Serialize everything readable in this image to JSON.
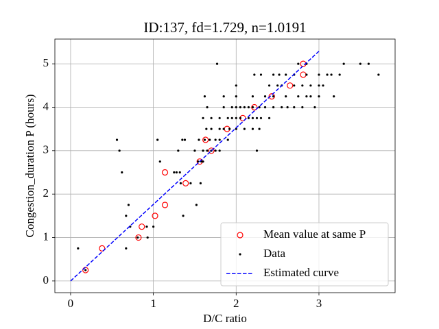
{
  "chart_data": {
    "type": "scatter",
    "title": "ID:137, fd=1.729, n=1.0191",
    "xlabel": "D/C ratio",
    "ylabel": "Congestion_duration P (hours)",
    "xlim": [
      -0.19,
      3.92
    ],
    "ylim": [
      -0.27,
      5.57
    ],
    "xticks": [
      0,
      1,
      2,
      3
    ],
    "yticks": [
      0,
      1,
      2,
      3,
      4,
      5
    ],
    "grid": true,
    "legend": "lower right",
    "series": [
      {
        "name": "Mean value at same P",
        "color": "#ff0000",
        "marker": "open-circle",
        "x": [
          0.18,
          0.38,
          0.82,
          0.86,
          1.02,
          1.14,
          1.14,
          1.39,
          1.56,
          1.63,
          1.7,
          1.89,
          2.08,
          2.22,
          2.43,
          2.65,
          2.81,
          2.81
        ],
        "values": [
          0.25,
          0.75,
          1.0,
          1.25,
          1.5,
          1.75,
          2.5,
          2.25,
          2.75,
          3.25,
          3.0,
          3.5,
          3.75,
          4.0,
          4.25,
          4.5,
          4.75,
          5.0
        ]
      },
      {
        "name": "Data",
        "color": "#000000",
        "marker": "dot",
        "x": [
          0.18,
          0.09,
          0.67,
          0.81,
          0.93,
          0.72,
          0.92,
          1.0,
          0.67,
          1.36,
          0.7,
          1.52,
          1.33,
          1.45,
          1.57,
          0.62,
          1.25,
          1.28,
          1.32,
          1.08,
          1.54,
          1.58,
          1.6,
          0.59,
          1.3,
          1.5,
          1.6,
          1.65,
          1.7,
          1.75,
          1.8,
          2.25,
          0.56,
          1.05,
          1.35,
          1.38,
          1.55,
          1.62,
          1.68,
          1.75,
          1.8,
          1.9,
          1.64,
          1.7,
          1.8,
          1.85,
          1.92,
          2.0,
          2.1,
          2.2,
          2.28,
          1.6,
          1.7,
          1.8,
          1.9,
          1.95,
          2.0,
          2.05,
          2.15,
          2.2,
          2.25,
          2.3,
          2.4,
          1.65,
          1.85,
          1.95,
          2.0,
          2.05,
          2.1,
          2.15,
          2.2,
          2.28,
          2.35,
          2.45,
          2.55,
          2.62,
          2.7,
          2.8,
          2.95,
          1.62,
          1.85,
          2.0,
          2.2,
          2.35,
          2.45,
          2.6,
          2.75,
          2.85,
          2.9,
          3.0,
          3.18,
          2.0,
          2.4,
          2.5,
          2.55,
          2.7,
          2.8,
          2.9,
          3.0,
          3.05,
          2.22,
          2.3,
          2.45,
          2.52,
          2.6,
          2.7,
          2.85,
          3.0,
          3.1,
          3.15,
          3.25,
          3.72,
          1.77,
          2.75,
          2.85,
          3.3,
          3.5,
          3.6
        ],
        "values": [
          0.25,
          0.75,
          0.75,
          1.0,
          1.0,
          1.25,
          1.25,
          1.25,
          1.5,
          1.5,
          1.75,
          1.75,
          2.25,
          2.25,
          2.25,
          2.5,
          2.5,
          2.5,
          2.5,
          2.75,
          2.75,
          2.75,
          2.75,
          3.0,
          3.0,
          3.0,
          3.0,
          3.0,
          3.0,
          3.0,
          3.0,
          3.0,
          3.25,
          3.25,
          3.25,
          3.25,
          3.25,
          3.25,
          3.25,
          3.25,
          3.25,
          3.25,
          3.5,
          3.5,
          3.5,
          3.5,
          3.5,
          3.5,
          3.5,
          3.5,
          3.5,
          3.75,
          3.75,
          3.75,
          3.75,
          3.75,
          3.75,
          3.75,
          3.75,
          3.75,
          3.75,
          3.75,
          3.75,
          4.0,
          4.0,
          4.0,
          4.0,
          4.0,
          4.0,
          4.0,
          4.0,
          4.0,
          4.0,
          4.0,
          4.0,
          4.0,
          4.0,
          4.0,
          4.0,
          4.25,
          4.25,
          4.25,
          4.25,
          4.25,
          4.25,
          4.25,
          4.25,
          4.25,
          4.25,
          4.25,
          4.25,
          4.5,
          4.5,
          4.5,
          4.5,
          4.5,
          4.5,
          4.5,
          4.5,
          4.5,
          4.75,
          4.75,
          4.75,
          4.75,
          4.75,
          4.75,
          4.75,
          4.75,
          4.75,
          4.75,
          4.75,
          4.75,
          5.0,
          5.0,
          5.0,
          5.0,
          5.0,
          5.0
        ]
      },
      {
        "name": "Estimated curve",
        "color": "#0000ff",
        "marker": "dashed-line",
        "x": [
          0,
          3
        ],
        "values": [
          0,
          5.29
        ]
      }
    ]
  }
}
